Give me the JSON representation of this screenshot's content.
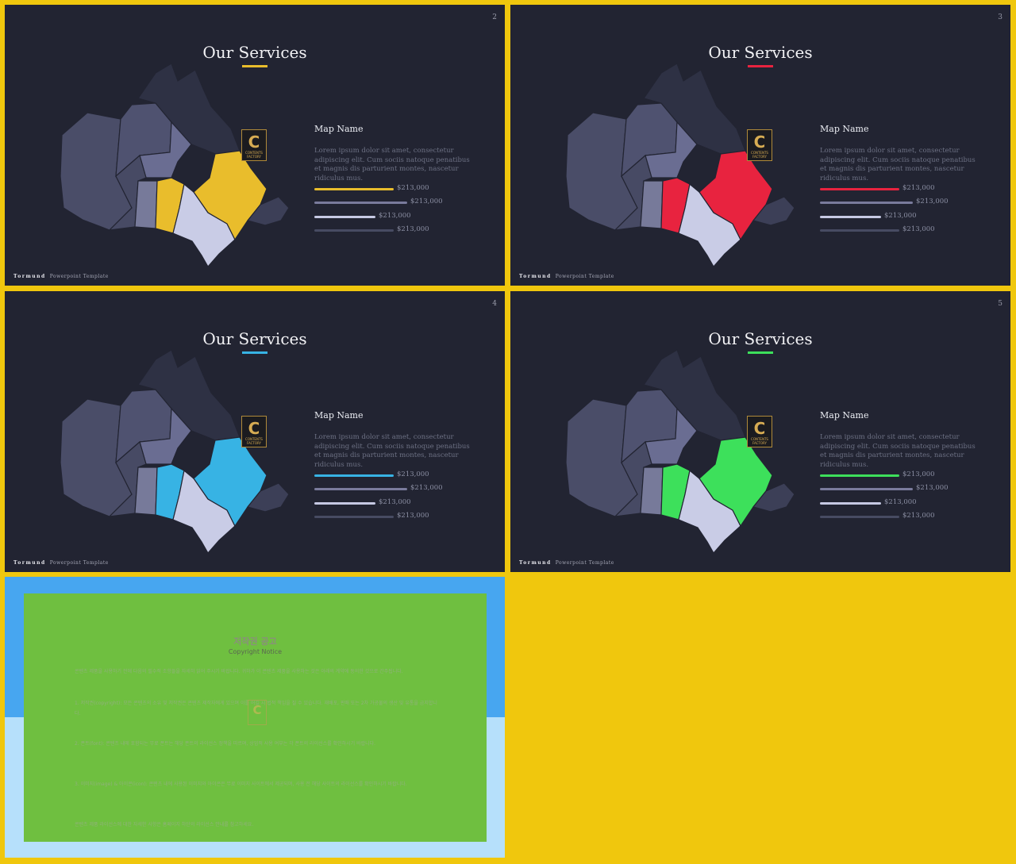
{
  "footer": {
    "brand": "Tormund",
    "label": "Powerpoint  Template"
  },
  "logo": {
    "letter": "C",
    "text": "CONTENTS FACTORY"
  },
  "slides": [
    {
      "number": "2",
      "title": "Our Services",
      "accent": "#e9bd2c",
      "map_name": "Map Name",
      "description": "Lorem ipsum dolor sit amet, consectetur adipiscing elit. Cum sociis natoque penatibus et magnis dis parturient montes, nascetur ridiculus mus.",
      "bars": [
        {
          "value": "$213,000",
          "level": 0.85,
          "color": "#e9bd2c"
        },
        {
          "value": "$213,000",
          "level": 1.0,
          "color": "#7a7b9c"
        },
        {
          "value": "$213,000",
          "level": 0.66,
          "color": "#c6c9e3"
        },
        {
          "value": "$213,000",
          "level": 0.85,
          "color": "#474b62"
        }
      ]
    },
    {
      "number": "3",
      "title": "Our Services",
      "accent": "#e8233f",
      "map_name": "Map Name",
      "description": "Lorem ipsum dolor sit amet, consectetur adipiscing elit. Cum sociis natoque penatibus et magnis dis parturient montes, nascetur ridiculus mus.",
      "bars": [
        {
          "value": "$213,000",
          "level": 0.85,
          "color": "#e8233f"
        },
        {
          "value": "$213,000",
          "level": 1.0,
          "color": "#7a7b9c"
        },
        {
          "value": "$213,000",
          "level": 0.66,
          "color": "#c6c9e3"
        },
        {
          "value": "$213,000",
          "level": 0.85,
          "color": "#474b62"
        }
      ]
    },
    {
      "number": "4",
      "title": "Our Services",
      "accent": "#37b3e4",
      "map_name": "Map Name",
      "description": "Lorem ipsum dolor sit amet, consectetur adipiscing elit. Cum sociis natoque penatibus et magnis dis parturient montes, nascetur ridiculus mus.",
      "bars": [
        {
          "value": "$213,000",
          "level": 0.85,
          "color": "#37b3e4"
        },
        {
          "value": "$213,000",
          "level": 1.0,
          "color": "#7a7b9c"
        },
        {
          "value": "$213,000",
          "level": 0.66,
          "color": "#c6c9e3"
        },
        {
          "value": "$213,000",
          "level": 0.85,
          "color": "#474b62"
        }
      ]
    },
    {
      "number": "5",
      "title": "Our Services",
      "accent": "#3de05b",
      "map_name": "Map Name",
      "description": "Lorem ipsum dolor sit amet, consectetur adipiscing elit. Cum sociis natoque penatibus et magnis dis parturient montes, nascetur ridiculus mus.",
      "bars": [
        {
          "value": "$213,000",
          "level": 0.85,
          "color": "#3de05b"
        },
        {
          "value": "$213,000",
          "level": 1.0,
          "color": "#7a7b9c"
        },
        {
          "value": "$213,000",
          "level": 0.66,
          "color": "#c6c9e3"
        },
        {
          "value": "$213,000",
          "level": 0.85,
          "color": "#474b62"
        }
      ]
    }
  ],
  "notice": {
    "title": "저작권 공고",
    "subtitle": "Copyright Notice",
    "paragraphs": [
      "콘텐츠 제품을 사용하기 전에 다음의 필수적 조항들을 자세히 읽어 주시기 바랍니다. 귀하가 이 콘텐츠 제품을 사용하는 것은 아래의 계약에 동의한 것으로 간주됩니다.",
      "1. 저작권(copyright): 모든 콘텐츠의 소유 및 저작권은 콘텐츠 제작자에게 있으며 이를 어길 시 법적 책임을 질 수 있습니다. 재배포, 판매 또는 2차 가공물의 생산 및 유통을 금지합니다.",
      "2. 폰트(font): 콘텐츠 내에 포함되는 무료 폰트는 해당 폰트의 라이선스 정책을 따르며, 상업적 사용 여부는 각 폰트의 라이선스를 확인하시기 바랍니다.",
      "3. 이미지(image) & 아이콘(icon): 콘텐츠 내에 사용된 이미지와 아이콘은 무료 이미지 사이트에서 제공되며, 사용 전 해당 사이트의 라이선스를 확인하시기 바랍니다.",
      "콘텐츠 제품 라이선스에 대한 자세한 사항은 홈페이지 하단의 라이선스 안내를 참고하세요."
    ]
  }
}
